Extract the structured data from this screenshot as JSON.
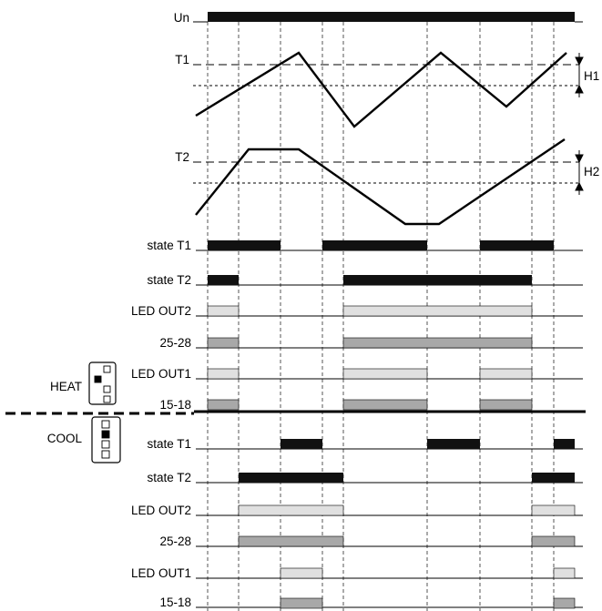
{
  "supply": {
    "label": "Un"
  },
  "thresholds": {
    "t1": {
      "label": "T1",
      "hyst": "H1"
    },
    "t2": {
      "label": "T2",
      "hyst": "H2"
    }
  },
  "modes": {
    "heat": "HEAT",
    "cool": "COOL"
  },
  "heat_rows": [
    {
      "label": "state T1"
    },
    {
      "label": "state T2"
    },
    {
      "label": "LED OUT2"
    },
    {
      "label": "25-28"
    },
    {
      "label": "LED OUT1"
    },
    {
      "label": "15-18"
    }
  ],
  "cool_rows": [
    {
      "label": "state T1"
    },
    {
      "label": "state T2"
    },
    {
      "label": "LED OUT2"
    },
    {
      "label": "25-28"
    },
    {
      "label": "LED OUT1"
    },
    {
      "label": "15-18"
    }
  ],
  "colors": {
    "state": "#111111",
    "led": "#e0e0e0",
    "terminal": "#a8a8a8",
    "line": "#000000"
  }
}
